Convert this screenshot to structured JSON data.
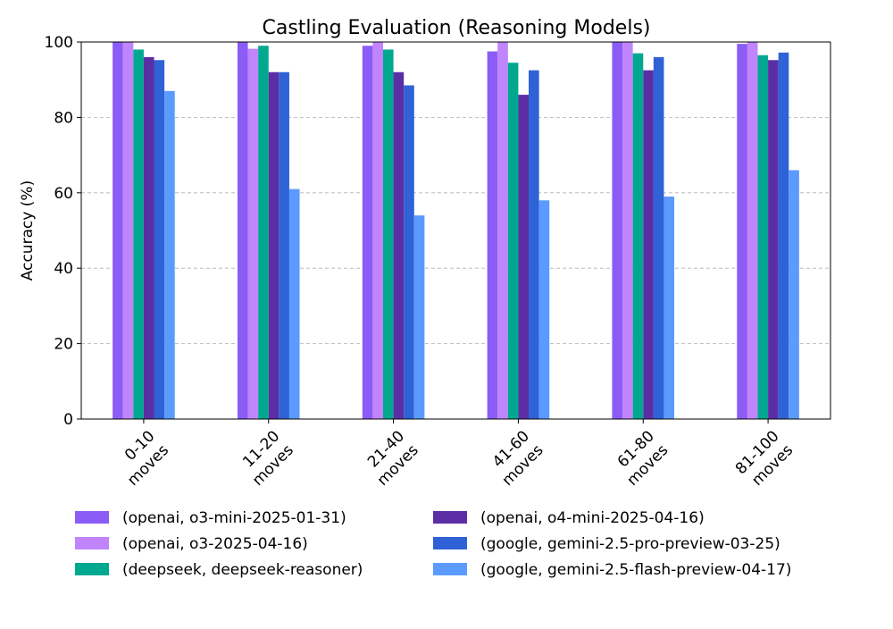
{
  "chart_data": {
    "type": "bar",
    "title": "Castling Evaluation (Reasoning Models)",
    "xlabel": "",
    "ylabel": "Accuracy (%)",
    "ylim": [
      0,
      100
    ],
    "yticks": [
      0,
      20,
      40,
      60,
      80,
      100
    ],
    "grid": "y-dashed",
    "legend_position": "bottom",
    "categories": [
      "0-10\nmoves",
      "11-20\nmoves",
      "21-40\nmoves",
      "41-60\nmoves",
      "61-80\nmoves",
      "81-100\nmoves"
    ],
    "series": [
      {
        "name": "(openai, o3-mini-2025-01-31)",
        "color": "#8b5cf6",
        "values": [
          100,
          100,
          99,
          97.5,
          100,
          99.5
        ]
      },
      {
        "name": "(openai, o3-2025-04-16)",
        "color": "#c084fc",
        "values": [
          100,
          98.2,
          100,
          100,
          100,
          100
        ]
      },
      {
        "name": "(deepseek, deepseek-reasoner)",
        "color": "#00a88f",
        "values": [
          98,
          99,
          98,
          94.5,
          97,
          96.5
        ]
      },
      {
        "name": "(openai, o4-mini-2025-04-16)",
        "color": "#5b2ea6",
        "values": [
          96,
          92,
          92,
          86,
          92.5,
          95.2
        ]
      },
      {
        "name": "(google, gemini-2.5-pro-preview-03-25)",
        "color": "#2f62d6",
        "values": [
          95.2,
          92,
          88.5,
          92.5,
          96,
          97.2
        ]
      },
      {
        "name": "(google, gemini-2.5-flash-preview-04-17)",
        "color": "#5b9bff",
        "values": [
          87,
          61,
          54,
          58,
          59,
          66
        ]
      }
    ]
  }
}
